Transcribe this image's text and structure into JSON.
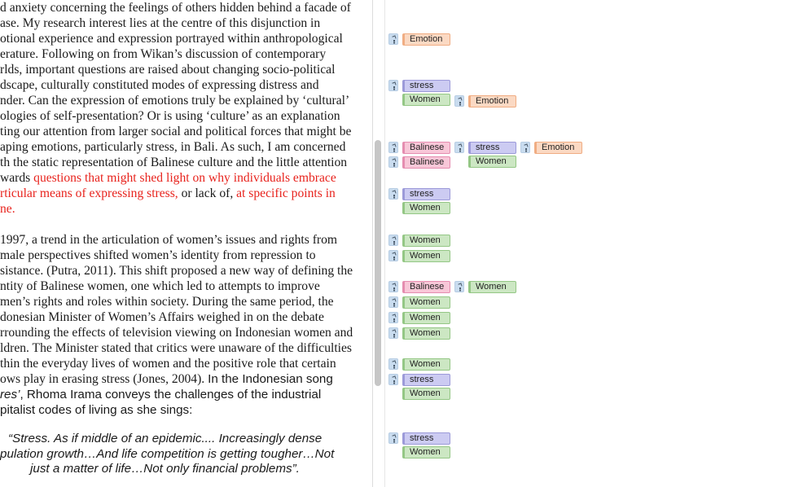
{
  "document": {
    "lines": [
      {
        "text": "d anxiety concerning the feelings of others hidden behind a facade of"
      },
      {
        "text": "ase. My research interest lies at the centre of this disjunction in"
      },
      {
        "text": "otional experience and expression portrayed within anthropological"
      },
      {
        "text": "erature. Following on from Wikan’s discussion of contemporary"
      },
      {
        "text": "rlds, important questions are raised about changing socio-political"
      },
      {
        "text": "dscape, culturally constituted modes of expressing distress and"
      },
      {
        "text": "nder. Can the expression of emotions truly be explained by ‘cultural’"
      },
      {
        "text": "ologies of self-presentation? Or is using ‘culture’ as an explanation"
      },
      {
        "text": "ting our attention from larger social and political forces that might be"
      },
      {
        "text": "aping emotions, particularly stress, in Bali. As such, I am concerned"
      },
      {
        "text": "th the static representation of Balinese culture and the little attention"
      },
      {
        "text": "wards ",
        "red": "questions that might shed light on why individuals embrace"
      },
      {
        "red": "rticular means of expressing stress,",
        "text2": " or lack of, ",
        "red2": "at specific points in"
      },
      {
        "red": "ne."
      },
      {
        "text": ""
      },
      {
        "text": "1997, a trend in the articulation of women’s issues and rights from"
      },
      {
        "text": "male perspectives shifted women’s identity from repression to"
      },
      {
        "text": "sistance. (Putra, 2011). This shift proposed a new way of defining the"
      },
      {
        "text": "ntity of Balinese women, one which led to attempts to improve"
      },
      {
        "text": "men’s rights and roles within society. During the same period, the"
      },
      {
        "text": "donesian Minister of Women’s Affairs weighed in on the debate"
      },
      {
        "text": "rrounding the effects of television viewing on Indonesian women and"
      },
      {
        "text": "ldren. The Minister stated that critics were unaware of the difficulties"
      },
      {
        "text": "thin the everyday lives of women and the positive role that certain"
      },
      {
        "text": "ows play in erasing stress (Jones, 2004). ",
        "sans": "In the Indonesian song"
      },
      {
        "sans_italic": "res’",
        "sans": ", Rhoma Irama conveys the challenges of the industrial"
      },
      {
        "sans": "pitalist codes of living as she sings:"
      }
    ],
    "quote_lines": [
      "“Stress. As if middle of an epidemic.... Increasingly dense",
      "pulation growth…And life competition is getting tougher…Not",
      "just a matter of life…Not only financial problems”."
    ]
  },
  "codes": {
    "emotion": "Emotion",
    "stress": "stress",
    "women": "Women",
    "balinese": "Balinese"
  },
  "colors": {
    "emotion": "#fbd9c3",
    "stress": "#cccbf2",
    "women": "#cce7c3",
    "balinese": "#f8c7d8",
    "highlight_text": "#e8231d"
  }
}
